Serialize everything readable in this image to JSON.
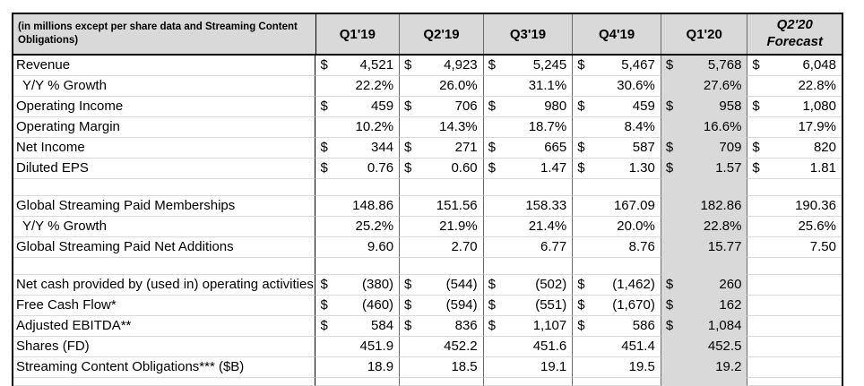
{
  "table": {
    "header": {
      "label": "(in millions except per share data and Streaming Content Obligations)",
      "columns": [
        {
          "label": "Q1'19"
        },
        {
          "label": "Q2'19"
        },
        {
          "label": "Q3'19"
        },
        {
          "label": "Q4'19"
        },
        {
          "label": "Q1'20"
        },
        {
          "label": "Q2'20 Forecast",
          "lines": [
            "Q2'20",
            "Forecast"
          ],
          "italic": true
        }
      ]
    },
    "highlight_column": "Q1'20",
    "highlight_column_index": 4,
    "rows": [
      {
        "type": "data",
        "label": "Revenue",
        "dollar": true,
        "values": [
          "4,521",
          "4,923",
          "5,245",
          "5,467",
          "5,768",
          "6,048"
        ]
      },
      {
        "type": "data",
        "label": "Y/Y % Growth",
        "indent": true,
        "values": [
          "22.2%",
          "26.0%",
          "31.1%",
          "30.6%",
          "27.6%",
          "22.8%"
        ]
      },
      {
        "type": "data",
        "label": "Operating Income",
        "dollar": true,
        "values": [
          "459",
          "706",
          "980",
          "459",
          "958",
          "1,080"
        ]
      },
      {
        "type": "data",
        "label": "Operating Margin",
        "values": [
          "10.2%",
          "14.3%",
          "18.7%",
          "8.4%",
          "16.6%",
          "17.9%"
        ]
      },
      {
        "type": "data",
        "label": "Net Income",
        "dollar": true,
        "values": [
          "344",
          "271",
          "665",
          "587",
          "709",
          "820"
        ]
      },
      {
        "type": "data",
        "label": "Diluted EPS",
        "dollar": true,
        "values": [
          "0.76",
          "0.60",
          "1.47",
          "1.30",
          "1.57",
          "1.81"
        ]
      },
      {
        "type": "blank"
      },
      {
        "type": "data",
        "label": "Global Streaming Paid Memberships",
        "values": [
          "148.86",
          "151.56",
          "158.33",
          "167.09",
          "182.86",
          "190.36"
        ]
      },
      {
        "type": "data",
        "label": "Y/Y % Growth",
        "indent": true,
        "values": [
          "25.2%",
          "21.9%",
          "21.4%",
          "20.0%",
          "22.8%",
          "25.6%"
        ]
      },
      {
        "type": "data",
        "label": "Global Streaming Paid Net Additions",
        "values": [
          "9.60",
          "2.70",
          "6.77",
          "8.76",
          "15.77",
          "7.50"
        ]
      },
      {
        "type": "blank"
      },
      {
        "type": "data",
        "label": "Net cash provided by (used in) operating activities",
        "dollar": true,
        "values": [
          "(380)",
          "(544)",
          "(502)",
          "(1,462)",
          "260",
          ""
        ]
      },
      {
        "type": "data",
        "label": "Free Cash Flow*",
        "dollar": true,
        "values": [
          "(460)",
          "(594)",
          "(551)",
          "(1,670)",
          "162",
          ""
        ]
      },
      {
        "type": "data",
        "label": "Adjusted EBITDA**",
        "dollar": true,
        "values": [
          "584",
          "836",
          "1,107",
          "586",
          "1,084",
          ""
        ]
      },
      {
        "type": "data",
        "label": "Shares (FD)",
        "values": [
          "451.9",
          "452.2",
          "451.6",
          "451.4",
          "452.5",
          ""
        ]
      },
      {
        "type": "data",
        "label": "Streaming Content Obligations*** ($B)",
        "values": [
          "18.9",
          "18.5",
          "19.1",
          "19.5",
          "19.2",
          ""
        ]
      },
      {
        "type": "blank-bottom"
      }
    ]
  },
  "colors": {
    "header_bg": "#d9d9d9",
    "highlight_col_bg": "#d9d9d9",
    "outer_border": "#000000",
    "column_line": "#6a6a6a",
    "row_line": "#d9d9d9",
    "text": "#000000"
  }
}
